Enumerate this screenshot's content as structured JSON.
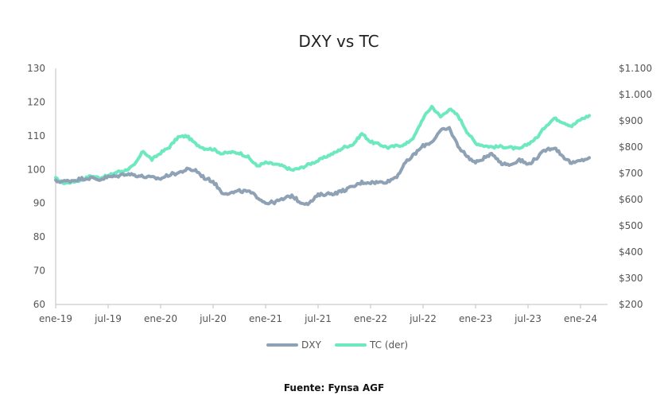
{
  "source_note": "Fuente: Fynsa AGF",
  "chart_data": {
    "type": "line",
    "title": "DXY vs TC",
    "xlabel": "",
    "ylabel": "",
    "legend_position": "bottom",
    "grid": false,
    "x_ticks": [
      "ene-19",
      "jul-19",
      "ene-20",
      "jul-20",
      "ene-21",
      "jul-21",
      "ene-22",
      "jul-22",
      "ene-23",
      "jul-23",
      "ene-24"
    ],
    "y_left": {
      "min": 60,
      "max": 130,
      "ticks": [
        "60",
        "70",
        "80",
        "90",
        "100",
        "110",
        "120",
        "130"
      ]
    },
    "y_right": {
      "min": 200,
      "max": 1100,
      "ticks": [
        "$200",
        "$300",
        "$400",
        "$500",
        "$600",
        "$700",
        "$800",
        "$900",
        "$1.000",
        "$1.100"
      ]
    },
    "x": [
      "ene-19",
      "feb-19",
      "mar-19",
      "abr-19",
      "may-19",
      "jun-19",
      "jul-19",
      "ago-19",
      "sep-19",
      "oct-19",
      "nov-19",
      "dic-19",
      "ene-20",
      "feb-20",
      "mar-20",
      "abr-20",
      "may-20",
      "jun-20",
      "jul-20",
      "ago-20",
      "sep-20",
      "oct-20",
      "nov-20",
      "dic-20",
      "ene-21",
      "feb-21",
      "mar-21",
      "abr-21",
      "may-21",
      "jun-21",
      "jul-21",
      "ago-21",
      "sep-21",
      "oct-21",
      "nov-21",
      "dic-21",
      "ene-22",
      "feb-22",
      "mar-22",
      "abr-22",
      "may-22",
      "jun-22",
      "jul-22",
      "ago-22",
      "sep-22",
      "oct-22",
      "nov-22",
      "dic-22",
      "ene-23",
      "feb-23",
      "mar-23",
      "abr-23",
      "may-23",
      "jun-23",
      "jul-23",
      "ago-23",
      "sep-23",
      "oct-23",
      "nov-23",
      "dic-23",
      "ene-24",
      "feb-24"
    ],
    "series": [
      {
        "name": "DXY",
        "axis": "left",
        "color": "#8ea1b5",
        "values": [
          96.5,
          96.5,
          96.8,
          97.3,
          97.5,
          97.0,
          97.8,
          98.0,
          98.8,
          98.4,
          97.9,
          97.6,
          97.3,
          98.5,
          99.0,
          100.0,
          99.8,
          97.5,
          96.5,
          93.2,
          93.0,
          93.6,
          93.5,
          92.0,
          90.1,
          90.3,
          91.2,
          92.3,
          90.2,
          90.0,
          92.4,
          92.8,
          93.0,
          93.9,
          94.9,
          96.2,
          96.2,
          96.2,
          96.5,
          98.0,
          102.0,
          104.5,
          107.0,
          108.2,
          111.5,
          112.2,
          107.0,
          104.0,
          102.0,
          103.5,
          104.6,
          101.8,
          101.4,
          103.0,
          101.5,
          103.5,
          105.8,
          106.6,
          103.9,
          101.8,
          102.6,
          103.5
        ]
      },
      {
        "name": "TC (der)",
        "axis": "right",
        "color": "#6ee8c1",
        "values": [
          680,
          662,
          668,
          675,
          690,
          683,
          690,
          705,
          712,
          730,
          785,
          752,
          778,
          800,
          838,
          842,
          812,
          795,
          792,
          775,
          780,
          778,
          762,
          728,
          740,
          735,
          727,
          712,
          720,
          735,
          748,
          765,
          780,
          800,
          810,
          852,
          820,
          810,
          798,
          805,
          810,
          840,
          910,
          955,
          915,
          945,
          920,
          860,
          815,
          805,
          800,
          802,
          798,
          792,
          812,
          835,
          880,
          910,
          895,
          880,
          905,
          920
        ]
      }
    ]
  }
}
